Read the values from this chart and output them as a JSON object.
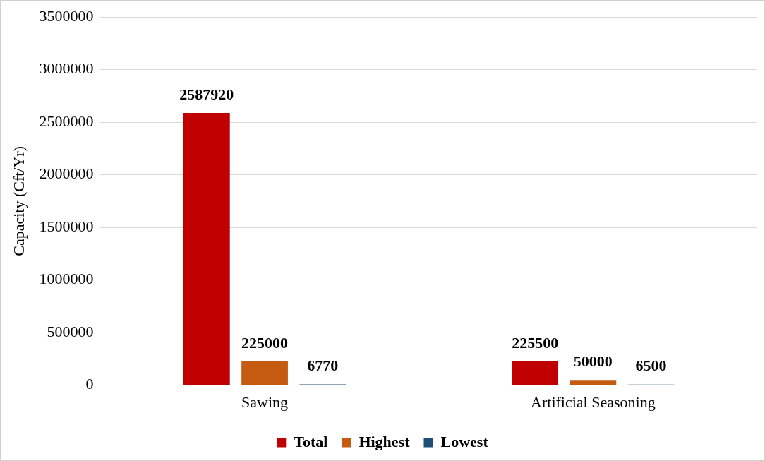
{
  "chart_data": {
    "type": "bar",
    "ylabel": "Capacity (Cft/Yr)",
    "categories": [
      "Sawing",
      "Artificial Seasoning"
    ],
    "series": [
      {
        "name": "Total",
        "color": "#c00000",
        "values": [
          2587920,
          225500
        ]
      },
      {
        "name": "Highest",
        "color": "#c55a11",
        "values": [
          225000,
          50000
        ]
      },
      {
        "name": "Lowest",
        "color": "#1f4e79",
        "values": [
          6770,
          6500
        ]
      }
    ],
    "ylim": [
      0,
      3500000
    ],
    "yticks": [
      0,
      500000,
      1000000,
      1500000,
      2000000,
      2500000,
      3000000,
      3500000
    ],
    "grid": "y",
    "legend": "bottom",
    "data_labels": true
  }
}
